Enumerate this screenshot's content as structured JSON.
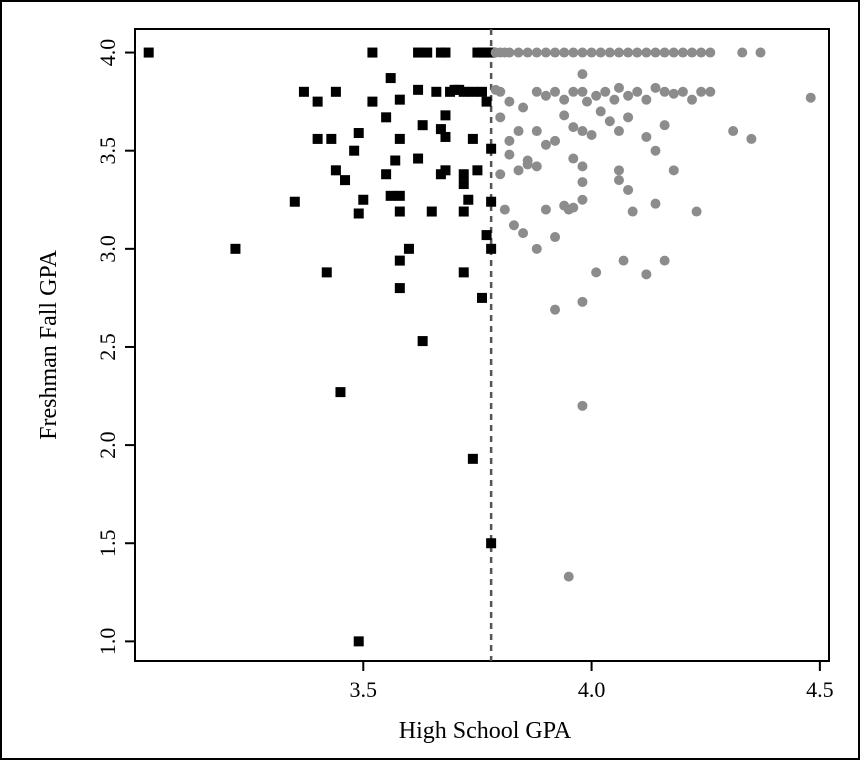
{
  "chart_data": {
    "type": "scatter",
    "title": "",
    "xlabel": "High School GPA",
    "ylabel": "Freshman Fall GPA",
    "xlim": [
      3.0,
      4.52
    ],
    "ylim": [
      0.9,
      4.12
    ],
    "x_ticks": [
      "3.5",
      "4.0",
      "4.5"
    ],
    "y_ticks": [
      "1.0",
      "1.5",
      "2.0",
      "2.5",
      "3.0",
      "3.5",
      "4.0"
    ],
    "cutoff_x": 3.78,
    "grid": false,
    "series": [
      {
        "marker": "square",
        "color": "#000000",
        "points": [
          [
            3.03,
            4.0
          ],
          [
            3.22,
            3.0
          ],
          [
            3.35,
            3.24
          ],
          [
            3.37,
            3.8
          ],
          [
            3.4,
            3.75
          ],
          [
            3.4,
            3.56
          ],
          [
            3.42,
            2.88
          ],
          [
            3.43,
            3.56
          ],
          [
            3.44,
            3.8
          ],
          [
            3.44,
            3.4
          ],
          [
            3.45,
            2.27
          ],
          [
            3.46,
            3.35
          ],
          [
            3.48,
            3.5
          ],
          [
            3.49,
            3.59
          ],
          [
            3.49,
            3.18
          ],
          [
            3.5,
            3.25
          ],
          [
            3.49,
            1.0
          ],
          [
            3.52,
            4.0
          ],
          [
            3.52,
            3.75
          ],
          [
            3.55,
            3.67
          ],
          [
            3.55,
            3.38
          ],
          [
            3.56,
            3.87
          ],
          [
            3.56,
            3.27
          ],
          [
            3.57,
            3.45
          ],
          [
            3.58,
            3.27
          ],
          [
            3.58,
            3.19
          ],
          [
            3.58,
            3.56
          ],
          [
            3.58,
            3.76
          ],
          [
            3.58,
            2.94
          ],
          [
            3.58,
            2.8
          ],
          [
            3.6,
            3.0
          ],
          [
            3.62,
            4.0
          ],
          [
            3.62,
            3.81
          ],
          [
            3.62,
            3.46
          ],
          [
            3.63,
            3.63
          ],
          [
            3.63,
            2.53
          ],
          [
            3.64,
            4.0
          ],
          [
            3.65,
            3.19
          ],
          [
            3.66,
            3.8
          ],
          [
            3.67,
            4.0
          ],
          [
            3.67,
            3.61
          ],
          [
            3.67,
            3.38
          ],
          [
            3.68,
            4.0
          ],
          [
            3.68,
            3.68
          ],
          [
            3.68,
            3.57
          ],
          [
            3.68,
            3.4
          ],
          [
            3.69,
            3.8
          ],
          [
            3.7,
            3.81
          ],
          [
            3.71,
            3.81
          ],
          [
            3.72,
            3.8
          ],
          [
            3.72,
            3.38
          ],
          [
            3.72,
            3.33
          ],
          [
            3.72,
            3.19
          ],
          [
            3.72,
            2.88
          ],
          [
            3.73,
            3.25
          ],
          [
            3.74,
            3.8
          ],
          [
            3.74,
            3.56
          ],
          [
            3.74,
            1.93
          ],
          [
            3.75,
            4.0
          ],
          [
            3.75,
            3.4
          ],
          [
            3.76,
            3.8
          ],
          [
            3.76,
            4.0
          ],
          [
            3.76,
            2.75
          ],
          [
            3.77,
            4.0
          ],
          [
            3.77,
            3.75
          ],
          [
            3.77,
            3.07
          ],
          [
            3.78,
            4.0
          ],
          [
            3.78,
            3.51
          ],
          [
            3.78,
            3.24
          ],
          [
            3.78,
            3.0
          ],
          [
            3.78,
            1.5
          ]
        ]
      },
      {
        "marker": "circle",
        "color": "#8c8c8c",
        "points": [
          [
            3.79,
            4.0
          ],
          [
            3.8,
            4.0
          ],
          [
            3.81,
            4.0
          ],
          [
            3.82,
            4.0
          ],
          [
            3.84,
            4.0
          ],
          [
            3.86,
            4.0
          ],
          [
            3.88,
            4.0
          ],
          [
            3.9,
            4.0
          ],
          [
            3.92,
            4.0
          ],
          [
            3.94,
            4.0
          ],
          [
            3.96,
            4.0
          ],
          [
            3.98,
            4.0
          ],
          [
            4.0,
            4.0
          ],
          [
            4.02,
            4.0
          ],
          [
            4.04,
            4.0
          ],
          [
            4.06,
            4.0
          ],
          [
            4.08,
            4.0
          ],
          [
            4.1,
            4.0
          ],
          [
            4.12,
            4.0
          ],
          [
            4.14,
            4.0
          ],
          [
            4.16,
            4.0
          ],
          [
            4.18,
            4.0
          ],
          [
            4.2,
            4.0
          ],
          [
            4.22,
            4.0
          ],
          [
            4.24,
            4.0
          ],
          [
            4.26,
            4.0
          ],
          [
            4.33,
            4.0
          ],
          [
            4.37,
            4.0
          ],
          [
            3.79,
            3.81
          ],
          [
            3.8,
            3.8
          ],
          [
            3.82,
            3.75
          ],
          [
            3.85,
            3.72
          ],
          [
            3.88,
            3.8
          ],
          [
            3.9,
            3.78
          ],
          [
            3.92,
            3.8
          ],
          [
            3.94,
            3.76
          ],
          [
            3.96,
            3.8
          ],
          [
            3.98,
            3.89
          ],
          [
            3.98,
            3.8
          ],
          [
            3.99,
            3.75
          ],
          [
            4.01,
            3.78
          ],
          [
            4.03,
            3.8
          ],
          [
            4.05,
            3.76
          ],
          [
            4.06,
            3.82
          ],
          [
            4.08,
            3.78
          ],
          [
            4.1,
            3.8
          ],
          [
            4.12,
            3.76
          ],
          [
            4.14,
            3.82
          ],
          [
            4.16,
            3.8
          ],
          [
            4.18,
            3.79
          ],
          [
            4.2,
            3.8
          ],
          [
            4.22,
            3.76
          ],
          [
            4.24,
            3.8
          ],
          [
            4.26,
            3.8
          ],
          [
            4.48,
            3.77
          ],
          [
            3.8,
            3.67
          ],
          [
            3.82,
            3.55
          ],
          [
            3.84,
            3.6
          ],
          [
            3.86,
            3.45
          ],
          [
            3.88,
            3.6
          ],
          [
            3.9,
            3.53
          ],
          [
            3.92,
            3.55
          ],
          [
            3.94,
            3.68
          ],
          [
            3.96,
            3.62
          ],
          [
            3.98,
            3.6
          ],
          [
            4.0,
            3.58
          ],
          [
            4.02,
            3.7
          ],
          [
            4.04,
            3.65
          ],
          [
            4.06,
            3.6
          ],
          [
            4.08,
            3.67
          ],
          [
            4.12,
            3.57
          ],
          [
            4.16,
            3.63
          ],
          [
            4.31,
            3.6
          ],
          [
            4.35,
            3.56
          ],
          [
            3.8,
            3.38
          ],
          [
            3.82,
            3.48
          ],
          [
            3.84,
            3.4
          ],
          [
            3.86,
            3.43
          ],
          [
            3.88,
            3.42
          ],
          [
            3.96,
            3.46
          ],
          [
            3.98,
            3.42
          ],
          [
            3.98,
            3.34
          ],
          [
            3.98,
            3.25
          ],
          [
            4.06,
            3.4
          ],
          [
            4.08,
            3.3
          ],
          [
            4.14,
            3.5
          ],
          [
            4.18,
            3.4
          ],
          [
            4.06,
            3.35
          ],
          [
            3.81,
            3.2
          ],
          [
            3.83,
            3.12
          ],
          [
            3.85,
            3.08
          ],
          [
            3.88,
            3.0
          ],
          [
            3.9,
            3.2
          ],
          [
            3.92,
            3.06
          ],
          [
            3.94,
            3.22
          ],
          [
            3.95,
            3.2
          ],
          [
            3.96,
            3.21
          ],
          [
            4.09,
            3.19
          ],
          [
            4.14,
            3.23
          ],
          [
            4.23,
            3.19
          ],
          [
            4.01,
            2.88
          ],
          [
            4.07,
            2.94
          ],
          [
            4.12,
            2.87
          ],
          [
            4.16,
            2.94
          ],
          [
            3.92,
            2.69
          ],
          [
            3.98,
            2.73
          ],
          [
            3.98,
            2.2
          ],
          [
            3.95,
            1.33
          ]
        ]
      }
    ]
  }
}
